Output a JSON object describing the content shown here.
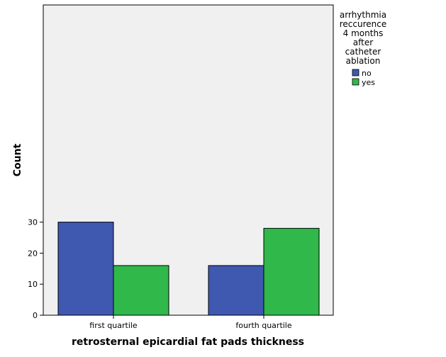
{
  "chart_data": {
    "type": "bar",
    "categories": [
      "first quartile",
      "fourth quartile"
    ],
    "series": [
      {
        "name": "no",
        "values": [
          30,
          16
        ],
        "color": "#3f58b0"
      },
      {
        "name": "yes",
        "values": [
          16,
          28
        ],
        "color": "#30b84a"
      }
    ],
    "xlabel": "retrosternal epicardial fat pads thickness",
    "ylabel": "Count",
    "ylim": [
      0,
      30
    ],
    "yticks": [
      0,
      10,
      20,
      30
    ],
    "grid": false,
    "plot_background": "#f0f0f0",
    "legend": {
      "title_lines": [
        "arrhythmia",
        "reccurence",
        "4 months",
        "after",
        "catheter",
        "ablation"
      ],
      "placement": "right"
    }
  }
}
